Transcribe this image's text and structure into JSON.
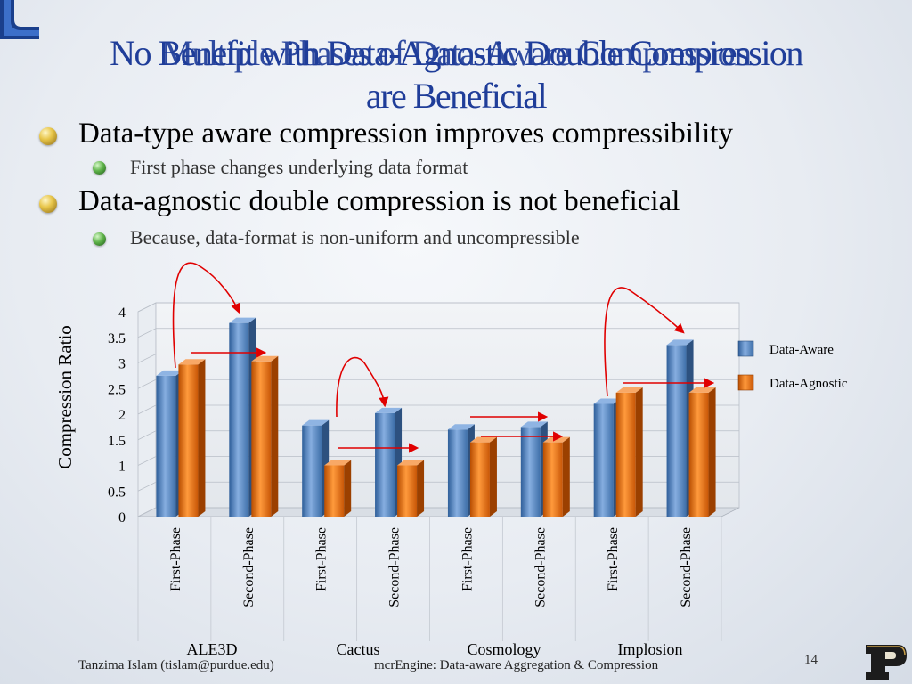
{
  "slide": {
    "title_layer_1": "No Benefit with Data-Agnostic Double Compression",
    "title_layer_2": "Multiple Phases of Data-Aware Compression",
    "title_line_2": "are Beneficial",
    "bullets": [
      {
        "level": 1,
        "text": "Data-type aware compression improves compressibility"
      },
      {
        "level": 2,
        "text": "First phase changes underlying data format"
      },
      {
        "level": 1,
        "text": "Data-agnostic double compression is not beneficial"
      },
      {
        "level": 2,
        "text": "Because, data-format is non-uniform and uncompressible"
      }
    ],
    "footer_author": "Tanzima Islam (tislam@purdue.edu)",
    "footer_title": "mcrEngine: Data-aware Aggregation & Compression",
    "page_number": "14"
  },
  "colors": {
    "title": "#1f3d99",
    "data_aware": "#4f81bd",
    "data_agnostic": "#e46c0a",
    "annotation": "#e00000"
  },
  "chart_data": {
    "type": "bar",
    "style": "3d-clustered-column",
    "ylabel": "Compression Ratio",
    "xlabel": "",
    "ylim": [
      0,
      4
    ],
    "yticks": [
      "0",
      "0.5",
      "1",
      "1.5",
      "2",
      "2.5",
      "3",
      "3.5",
      "4"
    ],
    "grid": true,
    "legend_position": "right",
    "groups": [
      "ALE3D",
      "Cactus",
      "Cosmology",
      "Implosion"
    ],
    "categories": [
      "First-Phase",
      "Second-Phase",
      "First-Phase",
      "Second-Phase",
      "First-Phase",
      "Second-Phase",
      "First-Phase",
      "Second-Phase"
    ],
    "series": [
      {
        "name": "Data-Aware",
        "values": [
          2.75,
          3.78,
          1.78,
          2.02,
          1.7,
          1.75,
          2.2,
          3.35
        ]
      },
      {
        "name": "Data-Agnostic",
        "values": [
          2.97,
          3.03,
          1.0,
          1.0,
          1.45,
          1.45,
          2.42,
          2.42
        ]
      }
    ]
  }
}
